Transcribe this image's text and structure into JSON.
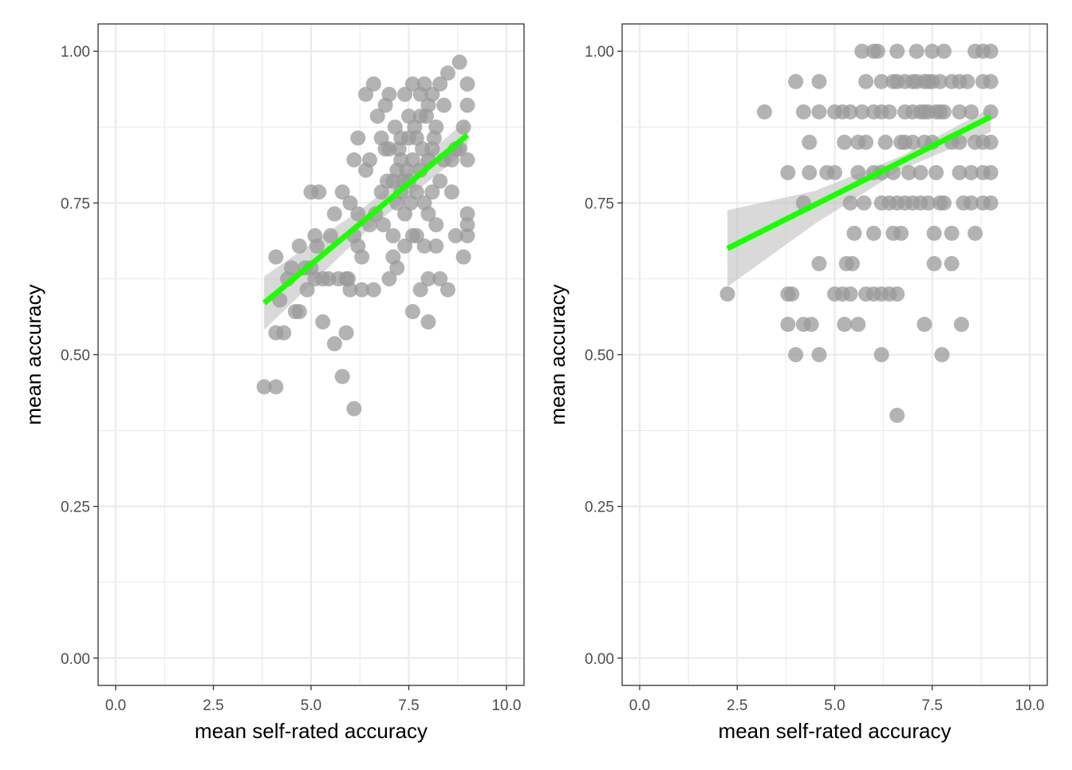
{
  "colors": {
    "point": "#999999",
    "fit_line": "#1cff00",
    "ribbon": "#bfbfbf",
    "grid": "#ebebeb",
    "panel_border": "#333333",
    "tick_text": "#4d4d4d"
  },
  "chart_data": [
    {
      "type": "scatter",
      "xlabel": "mean self-rated accuracy",
      "ylabel": "mean accuracy",
      "xlim": [
        -0.45,
        10.45
      ],
      "ylim": [
        -0.045,
        1.045
      ],
      "x_ticks": [
        0.0,
        2.5,
        5.0,
        7.5,
        10.0
      ],
      "x_tick_labels": [
        "0.0",
        "2.5",
        "5.0",
        "7.5",
        "10.0"
      ],
      "y_ticks": [
        0.0,
        0.25,
        0.5,
        0.75,
        1.0
      ],
      "y_tick_labels": [
        "0.00",
        "0.25",
        "0.50",
        "0.75",
        "1.00"
      ],
      "grid": true,
      "points": [
        [
          3.8,
          0.447
        ],
        [
          4.1,
          0.447
        ],
        [
          4.1,
          0.661
        ],
        [
          4.1,
          0.536
        ],
        [
          4.2,
          0.59
        ],
        [
          4.3,
          0.536
        ],
        [
          4.4,
          0.625
        ],
        [
          4.5,
          0.643
        ],
        [
          4.6,
          0.571
        ],
        [
          4.7,
          0.679
        ],
        [
          4.7,
          0.571
        ],
        [
          4.9,
          0.607
        ],
        [
          5.0,
          0.643
        ],
        [
          5.0,
          0.768
        ],
        [
          5.1,
          0.625
        ],
        [
          5.1,
          0.696
        ],
        [
          5.2,
          0.768
        ],
        [
          5.3,
          0.554
        ],
        [
          5.3,
          0.625
        ],
        [
          5.5,
          0.696
        ],
        [
          5.6,
          0.518
        ],
        [
          5.6,
          0.732
        ],
        [
          5.7,
          0.625
        ],
        [
          5.8,
          0.464
        ],
        [
          5.8,
          0.768
        ],
        [
          5.9,
          0.536
        ],
        [
          5.9,
          0.625
        ],
        [
          6.0,
          0.607
        ],
        [
          6.0,
          0.75
        ],
        [
          6.1,
          0.821
        ],
        [
          6.1,
          0.411
        ],
        [
          6.1,
          0.696
        ],
        [
          6.2,
          0.679
        ],
        [
          6.2,
          0.857
        ],
        [
          6.2,
          0.732
        ],
        [
          6.3,
          0.661
        ],
        [
          6.3,
          0.607
        ],
        [
          6.4,
          0.804
        ],
        [
          6.4,
          0.929
        ],
        [
          6.5,
          0.714
        ],
        [
          6.5,
          0.821
        ],
        [
          6.6,
          0.946
        ],
        [
          6.6,
          0.607
        ],
        [
          6.7,
          0.893
        ],
        [
          6.8,
          0.857
        ],
        [
          6.8,
          0.768
        ],
        [
          6.9,
          0.839
        ],
        [
          6.9,
          0.911
        ],
        [
          7.0,
          0.929
        ],
        [
          7.0,
          0.839
        ],
        [
          7.0,
          0.625
        ],
        [
          7.1,
          0.786
        ],
        [
          7.1,
          0.661
        ],
        [
          7.1,
          0.696
        ],
        [
          7.2,
          0.804
        ],
        [
          7.2,
          0.643
        ],
        [
          7.2,
          0.75
        ],
        [
          7.3,
          0.821
        ],
        [
          7.3,
          0.857
        ],
        [
          7.3,
          0.768
        ],
        [
          7.4,
          0.732
        ],
        [
          7.4,
          0.929
        ],
        [
          7.4,
          0.679
        ],
        [
          7.5,
          0.786
        ],
        [
          7.5,
          0.857
        ],
        [
          7.5,
          0.893
        ],
        [
          7.6,
          0.946
        ],
        [
          7.6,
          0.821
        ],
        [
          7.6,
          0.696
        ],
        [
          7.6,
          0.571
        ],
        [
          7.7,
          0.768
        ],
        [
          7.7,
          0.857
        ],
        [
          7.7,
          0.696
        ],
        [
          7.8,
          0.929
        ],
        [
          7.8,
          0.893
        ],
        [
          7.8,
          0.804
        ],
        [
          7.8,
          0.607
        ],
        [
          7.9,
          0.946
        ],
        [
          7.9,
          0.75
        ],
        [
          7.9,
          0.679
        ],
        [
          8.0,
          0.911
        ],
        [
          8.0,
          0.821
        ],
        [
          8.0,
          0.732
        ],
        [
          8.0,
          0.625
        ],
        [
          8.0,
          0.554
        ],
        [
          8.1,
          0.839
        ],
        [
          8.1,
          0.929
        ],
        [
          8.1,
          0.768
        ],
        [
          8.2,
          0.875
        ],
        [
          8.2,
          0.714
        ],
        [
          8.2,
          0.679
        ],
        [
          8.3,
          0.946
        ],
        [
          8.3,
          0.786
        ],
        [
          8.3,
          0.625
        ],
        [
          8.4,
          0.911
        ],
        [
          8.4,
          0.821
        ],
        [
          8.5,
          0.964
        ],
        [
          8.5,
          0.607
        ],
        [
          8.6,
          0.768
        ],
        [
          8.6,
          0.821
        ],
        [
          8.7,
          0.839
        ],
        [
          8.7,
          0.696
        ],
        [
          8.8,
          0.982
        ],
        [
          8.8,
          0.839
        ],
        [
          8.9,
          0.875
        ],
        [
          8.9,
          0.661
        ],
        [
          9.0,
          0.946
        ],
        [
          9.0,
          0.911
        ],
        [
          9.0,
          0.821
        ],
        [
          9.0,
          0.732
        ],
        [
          9.0,
          0.696
        ],
        [
          9.0,
          0.714
        ],
        [
          7.25,
          0.839
        ],
        [
          7.45,
          0.804
        ],
        [
          7.55,
          0.75
        ],
        [
          7.35,
          0.786
        ],
        [
          7.65,
          0.875
        ],
        [
          7.85,
          0.839
        ],
        [
          7.15,
          0.875
        ],
        [
          6.95,
          0.786
        ],
        [
          7.95,
          0.893
        ],
        [
          8.15,
          0.857
        ],
        [
          6.65,
          0.732
        ],
        [
          6.85,
          0.714
        ],
        [
          5.95,
          0.625
        ],
        [
          5.45,
          0.625
        ],
        [
          4.85,
          0.643
        ],
        [
          5.15,
          0.679
        ]
      ],
      "fit": {
        "x0": 3.8,
        "y0": 0.585,
        "x1": 9.0,
        "y1": 0.862
      },
      "ribbon": {
        "upper": [
          [
            3.8,
            0.629
          ],
          [
            6.4,
            0.745
          ],
          [
            9.0,
            0.887
          ]
        ],
        "lower": [
          [
            3.8,
            0.541
          ],
          [
            6.4,
            0.703
          ],
          [
            9.0,
            0.837
          ]
        ]
      }
    },
    {
      "type": "scatter",
      "xlabel": "mean self-rated accuracy",
      "ylabel": "mean accuracy",
      "xlim": [
        -0.45,
        10.45
      ],
      "ylim": [
        -0.045,
        1.045
      ],
      "x_ticks": [
        0.0,
        2.5,
        5.0,
        7.5,
        10.0
      ],
      "x_tick_labels": [
        "0.0",
        "2.5",
        "5.0",
        "7.5",
        "10.0"
      ],
      "y_ticks": [
        0.0,
        0.25,
        0.5,
        0.75,
        1.0
      ],
      "y_tick_labels": [
        "0.00",
        "0.25",
        "0.50",
        "0.75",
        "1.00"
      ],
      "grid": true,
      "points": [
        [
          2.25,
          0.6
        ],
        [
          3.2,
          0.9
        ],
        [
          3.8,
          0.8
        ],
        [
          3.8,
          0.6
        ],
        [
          3.8,
          0.55
        ],
        [
          3.9,
          0.6
        ],
        [
          4.0,
          0.95
        ],
        [
          4.0,
          0.5
        ],
        [
          4.2,
          0.9
        ],
        [
          4.2,
          0.75
        ],
        [
          4.2,
          0.55
        ],
        [
          4.35,
          0.85
        ],
        [
          4.35,
          0.8
        ],
        [
          4.4,
          0.55
        ],
        [
          4.6,
          0.95
        ],
        [
          4.6,
          0.65
        ],
        [
          4.6,
          0.5
        ],
        [
          4.6,
          0.9
        ],
        [
          4.8,
          0.8
        ],
        [
          5.0,
          0.9
        ],
        [
          5.0,
          0.8
        ],
        [
          5.0,
          0.6
        ],
        [
          5.2,
          0.9
        ],
        [
          5.2,
          0.6
        ],
        [
          5.25,
          0.85
        ],
        [
          5.25,
          0.55
        ],
        [
          5.3,
          0.65
        ],
        [
          5.4,
          0.9
        ],
        [
          5.4,
          0.75
        ],
        [
          5.4,
          0.6
        ],
        [
          5.45,
          0.65
        ],
        [
          5.5,
          0.7
        ],
        [
          5.6,
          0.85
        ],
        [
          5.6,
          0.8
        ],
        [
          5.6,
          0.55
        ],
        [
          5.7,
          1.0
        ],
        [
          5.7,
          0.9
        ],
        [
          5.75,
          0.75
        ],
        [
          5.8,
          0.95
        ],
        [
          5.8,
          0.6
        ],
        [
          5.8,
          0.85
        ],
        [
          6.0,
          1.0
        ],
        [
          6.0,
          0.9
        ],
        [
          6.0,
          0.8
        ],
        [
          6.0,
          0.7
        ],
        [
          6.0,
          0.6
        ],
        [
          6.1,
          1.0
        ],
        [
          6.2,
          0.95
        ],
        [
          6.2,
          0.9
        ],
        [
          6.2,
          0.8
        ],
        [
          6.2,
          0.75
        ],
        [
          6.2,
          0.6
        ],
        [
          6.2,
          0.5
        ],
        [
          6.3,
          0.85
        ],
        [
          6.4,
          0.9
        ],
        [
          6.4,
          0.75
        ],
        [
          6.4,
          0.6
        ],
        [
          6.5,
          0.95
        ],
        [
          6.5,
          0.7
        ],
        [
          6.5,
          0.8
        ],
        [
          6.6,
          0.95
        ],
        [
          6.6,
          0.75
        ],
        [
          6.6,
          0.6
        ],
        [
          6.6,
          0.4
        ],
        [
          6.6,
          1.0
        ],
        [
          6.7,
          0.85
        ],
        [
          6.7,
          0.7
        ],
        [
          6.8,
          0.95
        ],
        [
          6.8,
          0.9
        ],
        [
          6.8,
          0.85
        ],
        [
          6.8,
          0.75
        ],
        [
          6.9,
          0.8
        ],
        [
          7.0,
          0.95
        ],
        [
          7.0,
          0.9
        ],
        [
          7.0,
          0.85
        ],
        [
          7.0,
          0.75
        ],
        [
          7.1,
          1.0
        ],
        [
          7.1,
          0.95
        ],
        [
          7.2,
          0.9
        ],
        [
          7.2,
          0.8
        ],
        [
          7.2,
          0.75
        ],
        [
          7.3,
          0.95
        ],
        [
          7.3,
          0.9
        ],
        [
          7.3,
          0.85
        ],
        [
          7.3,
          0.55
        ],
        [
          7.4,
          0.95
        ],
        [
          7.4,
          0.9
        ],
        [
          7.4,
          0.75
        ],
        [
          7.5,
          1.0
        ],
        [
          7.5,
          0.95
        ],
        [
          7.5,
          0.85
        ],
        [
          7.55,
          0.7
        ],
        [
          7.55,
          0.65
        ],
        [
          7.6,
          0.9
        ],
        [
          7.6,
          0.8
        ],
        [
          7.7,
          0.95
        ],
        [
          7.7,
          0.9
        ],
        [
          7.7,
          0.75
        ],
        [
          7.75,
          0.5
        ],
        [
          7.8,
          0.9
        ],
        [
          7.8,
          1.0
        ],
        [
          7.8,
          0.75
        ],
        [
          8.0,
          0.95
        ],
        [
          8.0,
          0.85
        ],
        [
          8.0,
          0.7
        ],
        [
          8.0,
          0.65
        ],
        [
          8.2,
          0.95
        ],
        [
          8.2,
          0.9
        ],
        [
          8.2,
          0.8
        ],
        [
          8.2,
          0.85
        ],
        [
          8.25,
          0.55
        ],
        [
          8.3,
          0.75
        ],
        [
          8.4,
          0.95
        ],
        [
          8.5,
          0.9
        ],
        [
          8.5,
          0.8
        ],
        [
          8.5,
          0.75
        ],
        [
          8.6,
          0.85
        ],
        [
          8.6,
          0.7
        ],
        [
          8.6,
          1.0
        ],
        [
          8.8,
          1.0
        ],
        [
          8.8,
          0.95
        ],
        [
          8.8,
          0.8
        ],
        [
          8.8,
          0.75
        ],
        [
          8.8,
          0.85
        ],
        [
          9.0,
          1.0
        ],
        [
          9.0,
          0.95
        ],
        [
          9.0,
          0.9
        ],
        [
          9.0,
          0.85
        ],
        [
          9.0,
          0.8
        ],
        [
          9.0,
          0.75
        ]
      ],
      "fit": {
        "x0": 2.25,
        "y0": 0.675,
        "x1": 9.0,
        "y1": 0.892
      },
      "ribbon": {
        "upper": [
          [
            2.25,
            0.738
          ],
          [
            4.5,
            0.77
          ],
          [
            6.7,
            0.827
          ],
          [
            9.0,
            0.907
          ]
        ],
        "lower": [
          [
            2.25,
            0.612
          ],
          [
            4.5,
            0.716
          ],
          [
            6.7,
            0.805
          ],
          [
            9.0,
            0.867
          ]
        ]
      }
    }
  ]
}
